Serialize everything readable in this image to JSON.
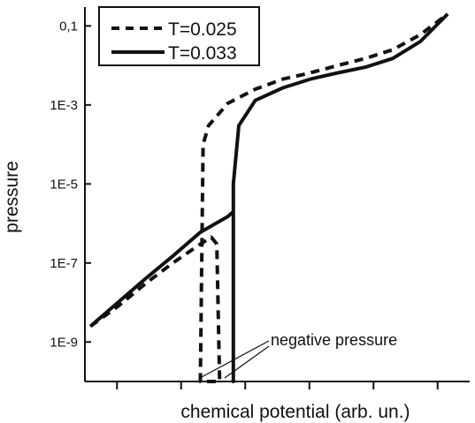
{
  "chart_data": {
    "type": "line",
    "title": "",
    "xlabel": "chemical potential (arb. un.)",
    "ylabel": "pressure",
    "y_scale": "log",
    "ylim": [
      1e-10,
      0.3
    ],
    "yticks": [
      {
        "value": 0.1,
        "label": "0,1"
      },
      {
        "value": 0.001,
        "label": "1E-3"
      },
      {
        "value": 1e-05,
        "label": "1E-5"
      },
      {
        "value": 1e-07,
        "label": "1E-7"
      },
      {
        "value": 1e-09,
        "label": "1E-9"
      }
    ],
    "x_tick_labels_shown": false,
    "grid": false,
    "legend_position": "top-left",
    "series": [
      {
        "name": "T=0.025",
        "style": "dashed",
        "color": "#111111",
        "points": [
          [
            0.0,
            2.5e-09
          ],
          [
            0.1,
            8e-09
          ],
          [
            0.2,
            3e-08
          ],
          [
            0.3,
            1e-07
          ],
          [
            0.4,
            3e-07
          ],
          [
            0.44,
            4.5e-07
          ],
          [
            0.46,
            3e-07
          ],
          [
            0.47,
            1e-10
          ],
          [
            0.4,
            1e-10
          ],
          [
            0.41,
            0.0001
          ],
          [
            0.43,
            0.0003
          ],
          [
            0.5,
            0.0011
          ],
          [
            0.6,
            0.0025
          ],
          [
            0.7,
            0.0045
          ],
          [
            0.8,
            0.0065
          ],
          [
            0.9,
            0.01
          ],
          [
            1.0,
            0.015
          ],
          [
            1.1,
            0.025
          ],
          [
            1.2,
            0.06
          ],
          [
            1.3,
            0.2
          ]
        ]
      },
      {
        "name": "T=0.033",
        "style": "solid",
        "color": "#111111",
        "points": [
          [
            0.0,
            2.5e-09
          ],
          [
            0.1,
            1e-08
          ],
          [
            0.2,
            4e-08
          ],
          [
            0.3,
            1.5e-07
          ],
          [
            0.4,
            6e-07
          ],
          [
            0.5,
            1.5e-06
          ],
          [
            0.52,
            2e-06
          ],
          [
            0.52,
            1e-10
          ],
          [
            0.52,
            1e-05
          ],
          [
            0.54,
            0.0003
          ],
          [
            0.6,
            0.0013
          ],
          [
            0.7,
            0.0027
          ],
          [
            0.8,
            0.0045
          ],
          [
            0.9,
            0.0065
          ],
          [
            1.0,
            0.009
          ],
          [
            1.1,
            0.015
          ],
          [
            1.2,
            0.04
          ],
          [
            1.3,
            0.2
          ]
        ]
      }
    ],
    "annotation": "negative pressure"
  }
}
